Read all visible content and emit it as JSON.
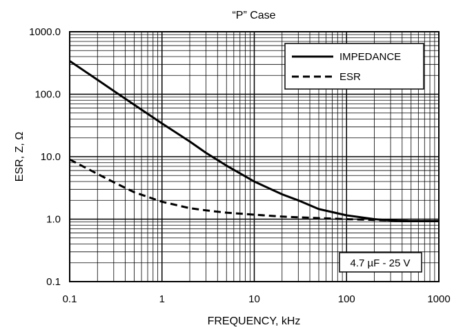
{
  "chart_data": {
    "type": "line",
    "title": "“P” Case",
    "xlabel": "FREQUENCY, kHz",
    "ylabel": "ESR, Z, Ω",
    "x_scale": "log",
    "y_scale": "log",
    "xlim": [
      0.1,
      1000
    ],
    "ylim": [
      0.1,
      1000
    ],
    "grid": true,
    "x_ticks": [
      {
        "value": 0.1,
        "label": "0.1"
      },
      {
        "value": 1,
        "label": "1"
      },
      {
        "value": 10,
        "label": "10"
      },
      {
        "value": 100,
        "label": "100"
      },
      {
        "value": 1000,
        "label": "1000"
      }
    ],
    "y_ticks": [
      {
        "value": 0.1,
        "label": "0.1"
      },
      {
        "value": 1,
        "label": "1.0"
      },
      {
        "value": 10,
        "label": "10.0"
      },
      {
        "value": 100,
        "label": "100.0"
      },
      {
        "value": 1000,
        "label": "1000.0"
      }
    ],
    "legend_position": "top-right",
    "annotation": "4.7 µF - 25 V",
    "series": [
      {
        "name": "IMPEDANCE",
        "style": "solid",
        "color": "#000000",
        "x": [
          0.1,
          0.2,
          0.3,
          0.5,
          1,
          2,
          3,
          5,
          10,
          20,
          30,
          50,
          100,
          200,
          300,
          500,
          1000
        ],
        "y": [
          340,
          170,
          113,
          68,
          34,
          17.5,
          11.5,
          7.2,
          4.0,
          2.5,
          2.0,
          1.45,
          1.15,
          1.0,
          0.95,
          0.93,
          0.93
        ]
      },
      {
        "name": "ESR",
        "style": "dashed",
        "color": "#000000",
        "x": [
          0.1,
          0.2,
          0.3,
          0.5,
          1,
          2,
          3,
          5,
          10,
          20,
          30,
          50,
          100,
          200,
          300,
          500,
          1000
        ],
        "y": [
          9.0,
          5.3,
          3.9,
          2.7,
          1.9,
          1.5,
          1.38,
          1.27,
          1.18,
          1.1,
          1.07,
          1.04,
          1.0,
          0.97,
          0.95,
          0.93,
          0.93
        ]
      }
    ]
  }
}
